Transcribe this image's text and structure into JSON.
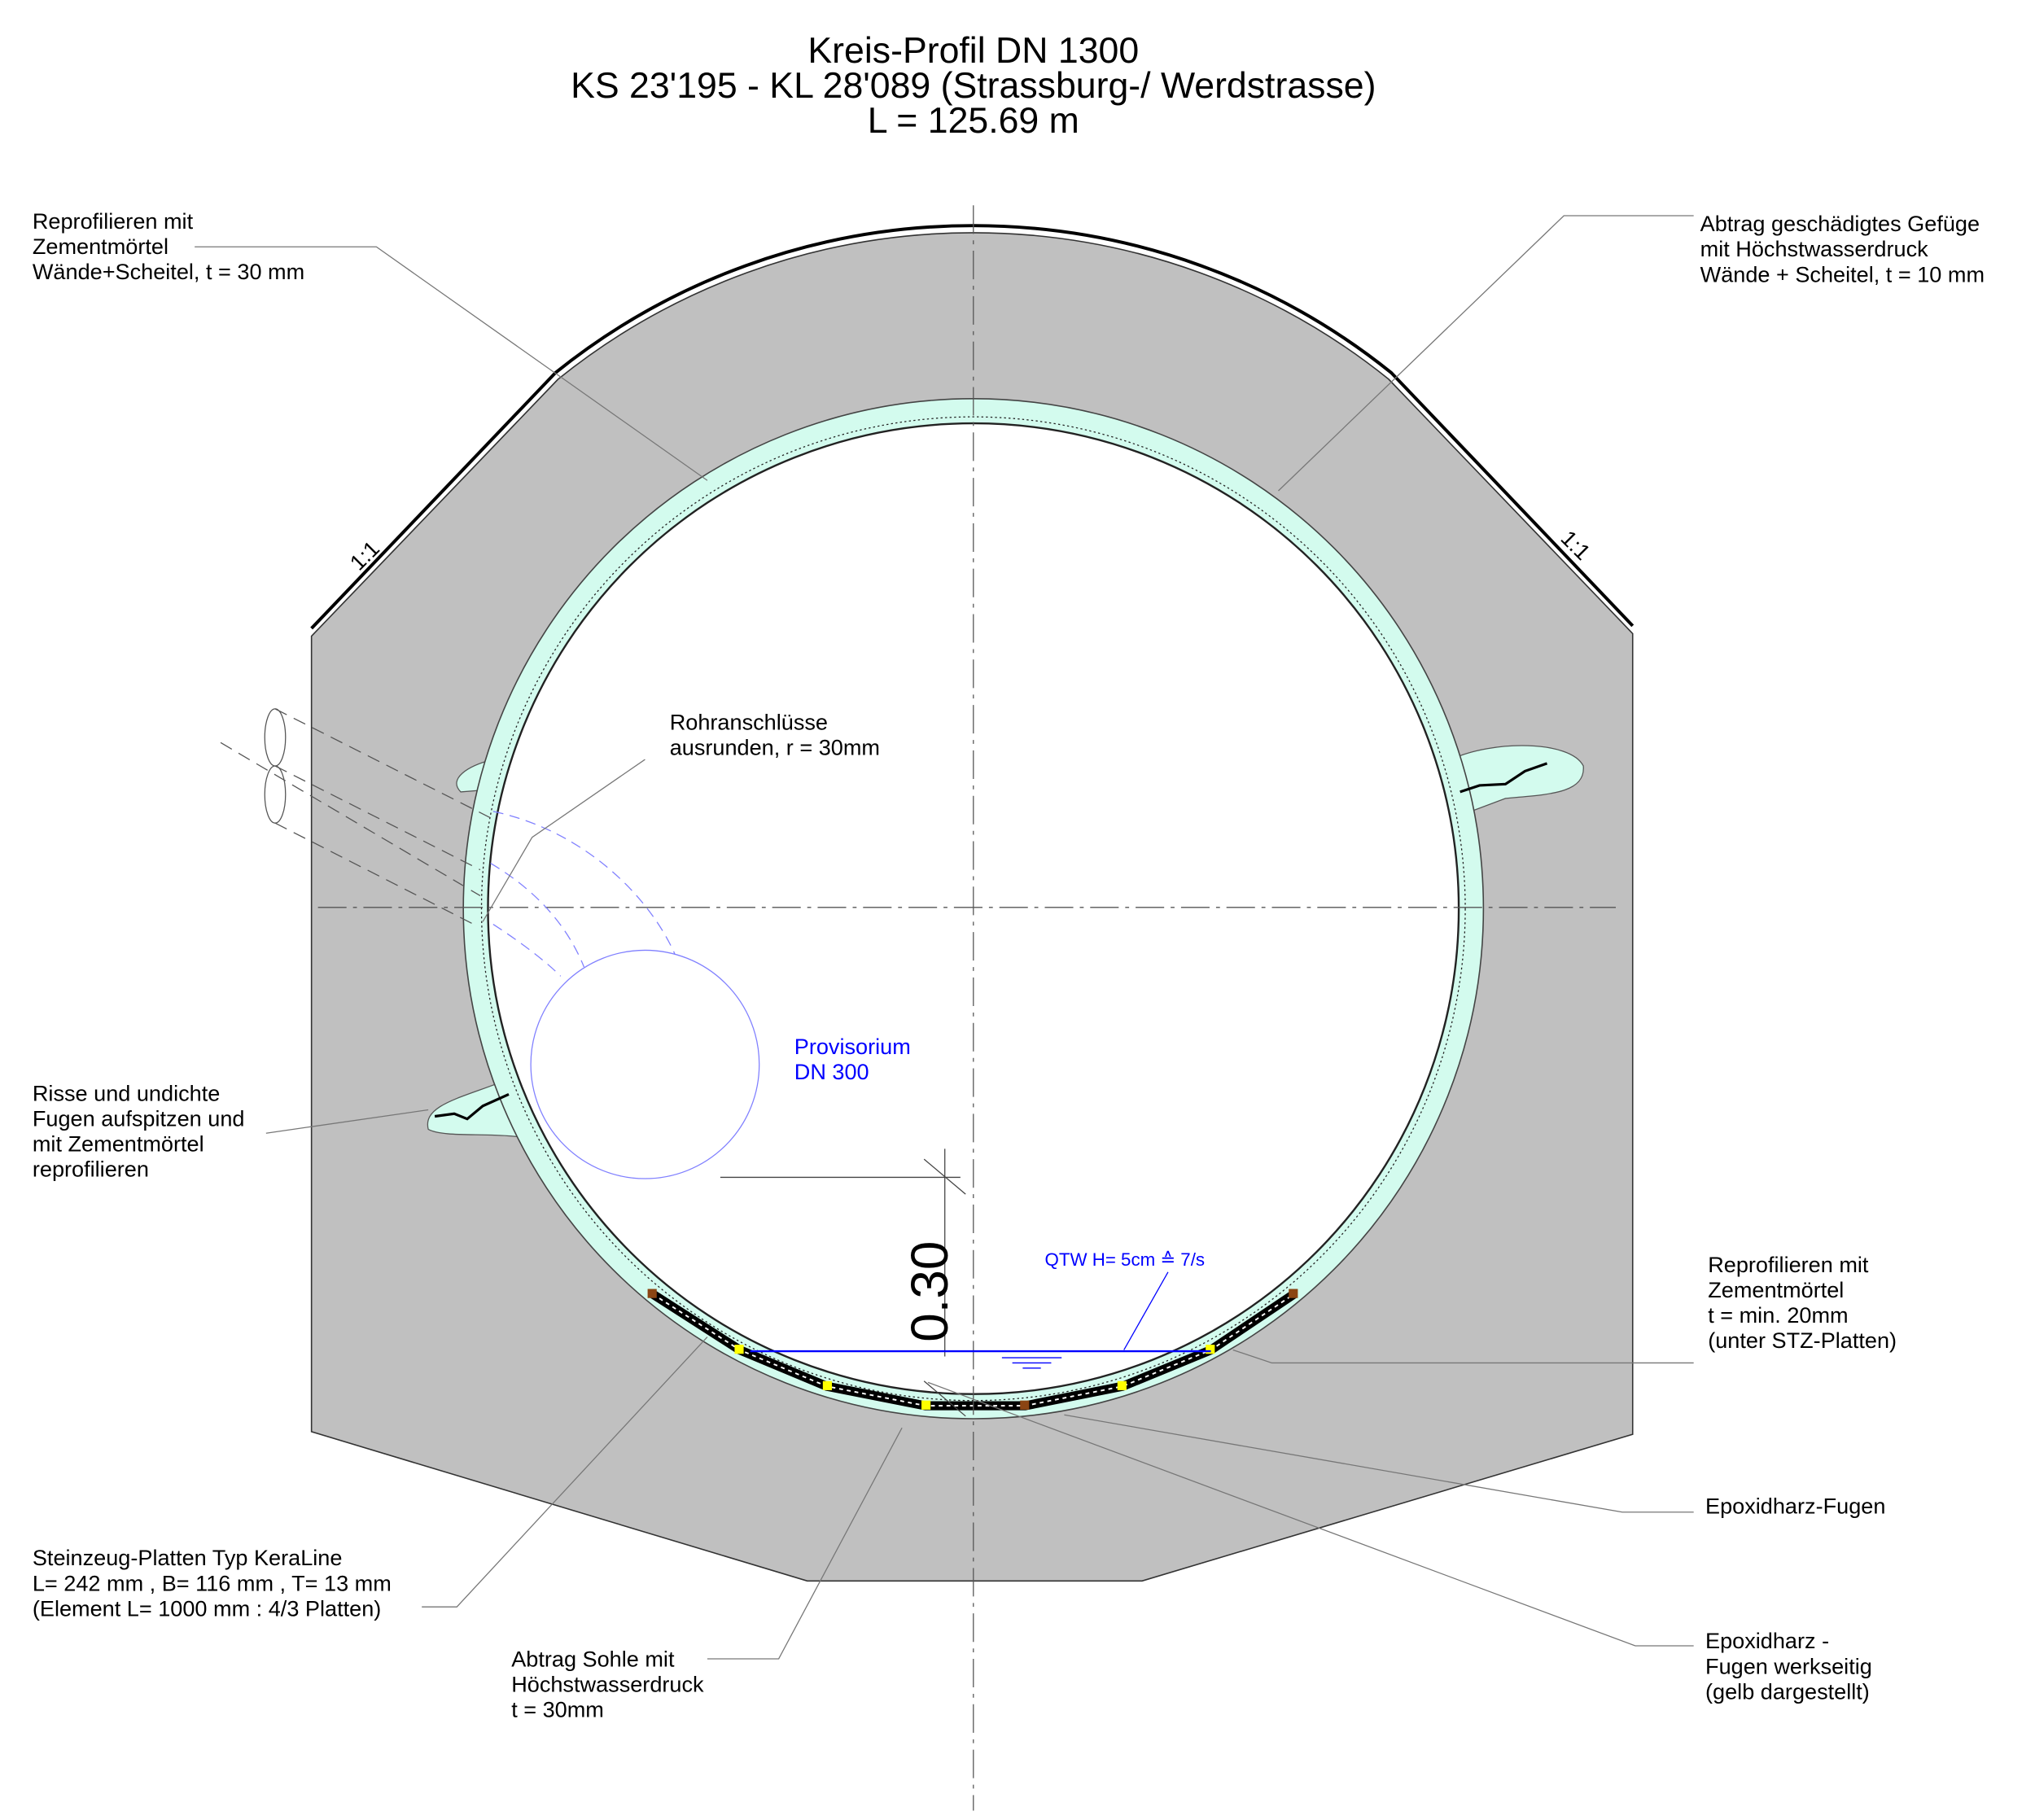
{
  "title": {
    "lines": [
      "Kreis-Profil DN 1300",
      "KS 23'195 - KL 28'089  (Strassburg-/ Werdstrasse)",
      "L = 125.69 m"
    ]
  },
  "slope_labels": [
    "1:1",
    "1:1"
  ],
  "dimension_label": "0.30",
  "water_label": "QTW H= 5cm ≙ 7/s",
  "annotations": [
    {
      "lines": [
        "Reprofilieren mit",
        "Zementmörtel",
        "Wände+Scheitel, t = 30 mm"
      ]
    },
    {
      "lines": [
        "Abtrag geschädigtes Gefüge",
        "mit Höchstwasserdruck",
        "Wände + Scheitel, t = 10 mm"
      ]
    },
    {
      "lines": [
        "Rohranschlüsse",
        "ausrunden, r = 30mm"
      ]
    },
    {
      "lines": [
        "Provisorium",
        "DN 300"
      ]
    },
    {
      "lines": [
        "Risse und undichte",
        "Fugen aufspitzen und",
        "mit Zementmörtel",
        "reprofilieren"
      ]
    },
    {
      "lines": [
        "Reprofilieren mit",
        "Zementmörtel",
        "t = min. 20mm",
        "(unter STZ-Platten)"
      ]
    },
    {
      "lines": [
        "Epoxidharz-Fugen"
      ]
    },
    {
      "lines": [
        "Steinzeug-Platten Typ KeraLine",
        "L= 242 mm , B= 116 mm , T= 13 mm",
        "(Element L= 1000 mm : 4/3 Platten)"
      ]
    },
    {
      "lines": [
        "Abtrag Sohle mit",
        "Höchstwasserdruck",
        "t = 30mm"
      ]
    },
    {
      "lines": [
        "Epoxidharz -",
        "Fugen werkseitig",
        "(gelb dargestellt)"
      ]
    }
  ]
}
